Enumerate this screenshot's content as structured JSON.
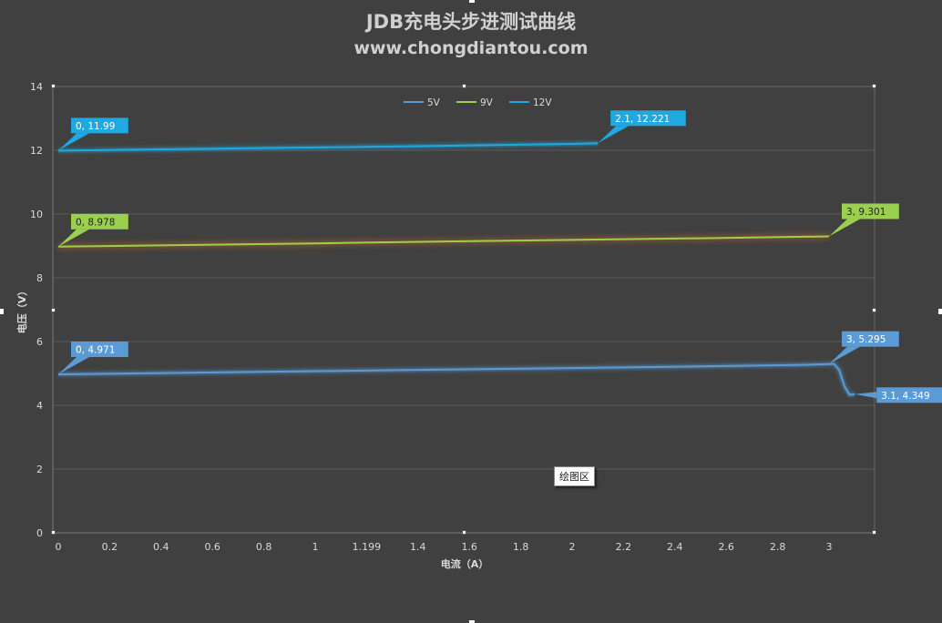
{
  "header": {
    "title": "JDB充电头步进测试曲线",
    "subtitle": "www.chongdiantou.com"
  },
  "tooltip": {
    "plot_area": "绘图区"
  },
  "colors": {
    "background": "#404040",
    "grid": "#5a5a5a",
    "axis_text": "#d9d9d9",
    "series_5v": "#5b9bd5",
    "series_9v": "#9bd04f",
    "series_12v": "#1fa9e0"
  },
  "chart_data": {
    "type": "line",
    "xlabel": "电流（A）",
    "ylabel": "电压（V）",
    "ylim": [
      0,
      14
    ],
    "xlim": [
      0,
      3.2
    ],
    "y_ticks": [
      0,
      2,
      4,
      6,
      8,
      10,
      12,
      14
    ],
    "x_ticks": [
      {
        "value": 0,
        "label": "0"
      },
      {
        "value": 0.2,
        "label": "0.2"
      },
      {
        "value": 0.4,
        "label": "0.4"
      },
      {
        "value": 0.6,
        "label": "0.6"
      },
      {
        "value": 0.8,
        "label": "0.8"
      },
      {
        "value": 1.0,
        "label": "1"
      },
      {
        "value": 1.2,
        "label": "1.199"
      },
      {
        "value": 1.4,
        "label": "1.4"
      },
      {
        "value": 1.6,
        "label": "1.6"
      },
      {
        "value": 1.8,
        "label": "1.8"
      },
      {
        "value": 2.0,
        "label": "2"
      },
      {
        "value": 2.2,
        "label": "2.2"
      },
      {
        "value": 2.4,
        "label": "2.4"
      },
      {
        "value": 2.6,
        "label": "2.6"
      },
      {
        "value": 2.8,
        "label": "2.8"
      },
      {
        "value": 3.0,
        "label": "3"
      }
    ],
    "grid": true,
    "legend_position": "top",
    "series": [
      {
        "name": "5V",
        "color": "#5b9bd5",
        "points": [
          [
            0,
            4.971
          ],
          [
            0.5,
            5.02
          ],
          [
            1.0,
            5.07
          ],
          [
            1.5,
            5.12
          ],
          [
            2.0,
            5.17
          ],
          [
            2.5,
            5.22
          ],
          [
            2.9,
            5.27
          ],
          [
            3.0,
            5.295
          ],
          [
            3.02,
            5.3
          ],
          [
            3.04,
            5.1
          ],
          [
            3.06,
            4.6
          ],
          [
            3.08,
            4.33
          ],
          [
            3.1,
            4.349
          ]
        ]
      },
      {
        "name": "9V",
        "color": "#9bd04f",
        "points": [
          [
            0,
            8.978
          ],
          [
            0.5,
            9.03
          ],
          [
            1.0,
            9.08
          ],
          [
            1.5,
            9.14
          ],
          [
            2.0,
            9.19
          ],
          [
            2.5,
            9.24
          ],
          [
            3.0,
            9.301
          ]
        ]
      },
      {
        "name": "12V",
        "color": "#1fa9e0",
        "points": [
          [
            0,
            11.99
          ],
          [
            0.5,
            12.04
          ],
          [
            1.0,
            12.09
          ],
          [
            1.5,
            12.14
          ],
          [
            2.0,
            12.2
          ],
          [
            2.1,
            12.221
          ]
        ]
      }
    ],
    "annotations": [
      {
        "series": "12V",
        "x": 0,
        "y": 11.99,
        "text": "0, 11.99",
        "color": "#1fa9e0",
        "text_color": "#ffffff",
        "side": "right-up"
      },
      {
        "series": "12V",
        "x": 2.1,
        "y": 12.221,
        "text": "2.1, 12.221",
        "color": "#1fa9e0",
        "text_color": "#ffffff",
        "side": "right-up"
      },
      {
        "series": "9V",
        "x": 0,
        "y": 8.978,
        "text": "0, 8.978",
        "color": "#9bd04f",
        "text_color": "#222222",
        "side": "right-up"
      },
      {
        "series": "9V",
        "x": 3.0,
        "y": 9.301,
        "text": "3, 9.301",
        "color": "#9bd04f",
        "text_color": "#222222",
        "side": "right-up"
      },
      {
        "series": "5V",
        "x": 0,
        "y": 4.971,
        "text": "0, 4.971",
        "color": "#5b9bd5",
        "text_color": "#ffffff",
        "side": "right-up"
      },
      {
        "series": "5V",
        "x": 3.0,
        "y": 5.295,
        "text": "3, 5.295",
        "color": "#5b9bd5",
        "text_color": "#ffffff",
        "side": "right-up"
      },
      {
        "series": "5V",
        "x": 3.1,
        "y": 4.349,
        "text": "3.1, 4.349",
        "color": "#5b9bd5",
        "text_color": "#ffffff",
        "side": "right"
      }
    ]
  }
}
